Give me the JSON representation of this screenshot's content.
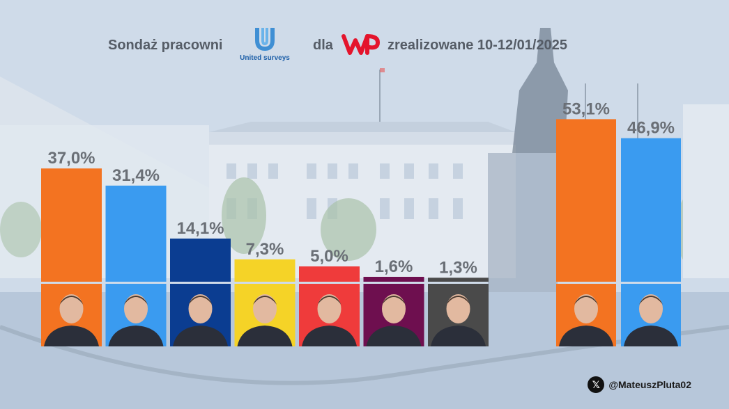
{
  "header": {
    "prefix": "Sondaż pracowni",
    "pollster_logo_text": "United surveys",
    "middle": "dla",
    "period": "zrealizowane 10-12/01/2025"
  },
  "social": {
    "handle": "@MateuszPluta02",
    "icon": "x-logo-icon"
  },
  "chart_data": [
    {
      "type": "bar",
      "title": "",
      "xlabel": "",
      "ylabel": "",
      "values": [
        37.0,
        31.4,
        14.1,
        7.3,
        5.0,
        1.6,
        1.3
      ],
      "labels": [
        "37,0%",
        "31,4%",
        "14,1%",
        "7,3%",
        "5,0%",
        "1,6%",
        "1,3%"
      ],
      "colors": [
        "#f37321",
        "#3a9bf0",
        "#0b3d91",
        "#f5d327",
        "#ef3b3b",
        "#6e0f4f",
        "#4a4a4a"
      ],
      "ylim": [
        0,
        60
      ],
      "grid": false,
      "legend": "none"
    },
    {
      "type": "bar",
      "title": "",
      "xlabel": "",
      "ylabel": "",
      "values": [
        53.1,
        46.9
      ],
      "labels": [
        "53,1%",
        "46,9%"
      ],
      "colors": [
        "#f37321",
        "#3a9bf0"
      ],
      "ylim": [
        0,
        60
      ],
      "grid": false,
      "legend": "none"
    }
  ]
}
